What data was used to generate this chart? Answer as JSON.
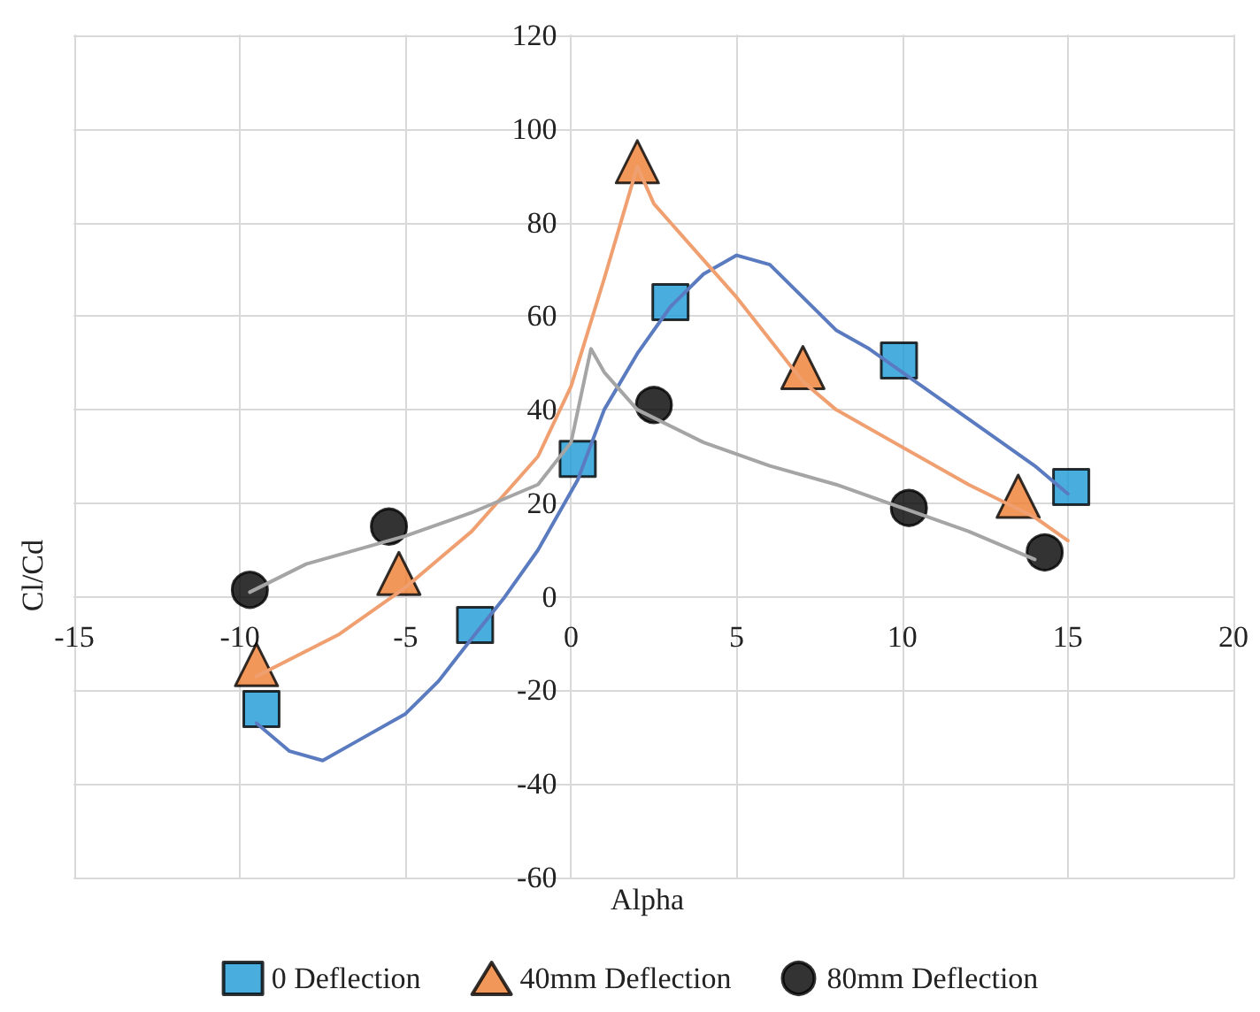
{
  "chart_data": {
    "type": "line",
    "xlabel": "Alpha",
    "ylabel": "Cl/Cd",
    "xlim": [
      -15,
      20
    ],
    "xticks": [
      -15,
      -10,
      -5,
      0,
      5,
      10,
      15,
      20
    ],
    "ylim": [
      -60,
      120
    ],
    "yticks": [
      -60,
      -40,
      -20,
      0,
      20,
      40,
      60,
      80,
      100,
      120
    ],
    "grid": true,
    "legend": "bottom",
    "series": [
      {
        "type": "line",
        "marker": "none",
        "color": "#5b7bc0",
        "x": [
          -9.5,
          -8.5,
          -7.5,
          -6.5,
          -5,
          -4,
          -2.9,
          -2,
          -1,
          0.2,
          1,
          2,
          3,
          4,
          5,
          6,
          7,
          8,
          9,
          10,
          12,
          14,
          15
        ],
        "values": [
          -27,
          -33,
          -35,
          -31,
          -25,
          -18,
          -8,
          0,
          10,
          25,
          40,
          52,
          62,
          69,
          73,
          71,
          64,
          57,
          53,
          48,
          38,
          28,
          22
        ]
      },
      {
        "type": "line",
        "marker": "none",
        "color": "#f0a070",
        "x": [
          -9.5,
          -7,
          -5,
          -3,
          -1,
          0,
          1,
          2,
          2.5,
          4,
          5,
          6,
          7,
          8,
          10,
          12,
          14,
          15
        ],
        "values": [
          -17,
          -8,
          2,
          14,
          30,
          45,
          68,
          92,
          84,
          72,
          64,
          55,
          46,
          40,
          32,
          24,
          17,
          12
        ]
      },
      {
        "type": "line",
        "marker": "none",
        "color": "#a5a5a5",
        "x": [
          -9.7,
          -8,
          -5,
          -3,
          -1,
          0,
          0.6,
          1,
          2,
          4,
          6,
          8,
          10,
          12,
          14
        ],
        "values": [
          1,
          7,
          13,
          18,
          24,
          33,
          53,
          48,
          40,
          33,
          28,
          24,
          19,
          14,
          8
        ]
      },
      {
        "type": "scatter",
        "marker": "square",
        "name": "0 Deflection",
        "color": "#1b9ad6",
        "x": [
          -9.35,
          -2.9,
          0.2,
          3.0,
          9.9,
          15.1
        ],
        "values": [
          -24,
          -6,
          29.5,
          63,
          50.5,
          23.5
        ]
      },
      {
        "type": "scatter",
        "marker": "triangle",
        "name": "40mm Deflection",
        "color": "#ed7d31",
        "x": [
          -9.5,
          -5.2,
          2.0,
          7.0,
          13.5
        ],
        "values": [
          -14.5,
          5,
          93,
          49,
          21.5
        ]
      },
      {
        "type": "scatter",
        "marker": "circle",
        "name": "80mm Deflection",
        "color": "#000000",
        "x": [
          -9.7,
          -5.5,
          2.5,
          10.2,
          14.3
        ],
        "values": [
          1.5,
          15,
          41,
          19,
          9.5
        ]
      }
    ]
  }
}
